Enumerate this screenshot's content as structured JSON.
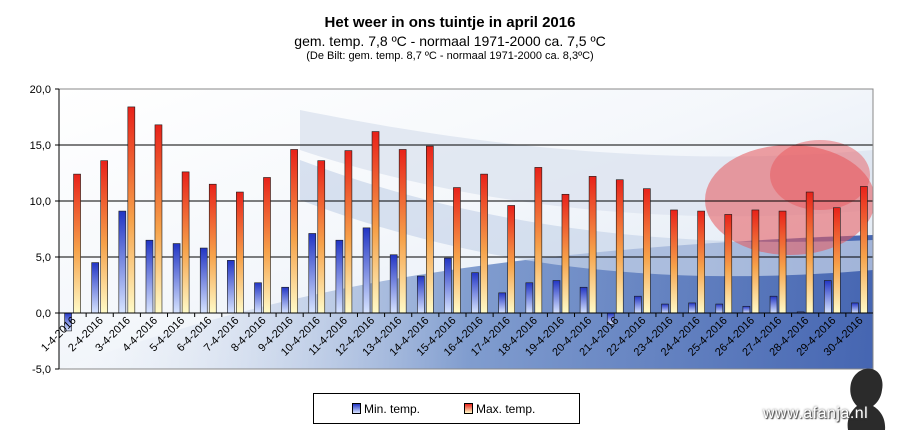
{
  "chart_data": {
    "type": "bar",
    "title": "Het weer in ons tuintje in april 2016",
    "subtitle": "gem.  temp. 7,8 ºC - normaal  1971-2000  ca. 7,5 ºC",
    "subtitle2": "(De Bilt: gem. temp. 8,7 ºC - normaal 1971-2000 ca. 8,3ºC)",
    "xlabel": "",
    "ylabel": "",
    "ylim": [
      -5,
      20
    ],
    "yticks": [
      "-5,0",
      "0,0",
      "5,0",
      "10,0",
      "15,0",
      "20,0"
    ],
    "grid": true,
    "legend_position": "bottom",
    "categories": [
      "1-4-2016",
      "2-4-2016",
      "3-4-2016",
      "4-4-2016",
      "5-4-2016",
      "6-4-2016",
      "7-4-2016",
      "8-4-2016",
      "9-4-2016",
      "10-4-2016",
      "11-4-2016",
      "12-4-2016",
      "13-4-2016",
      "14-4-2016",
      "15-4-2016",
      "16-4-2016",
      "17-4-2016",
      "18-4-2016",
      "19-4-2016",
      "20-4-2016",
      "21-4-2016",
      "22-4-2016",
      "23-4-2016",
      "24-4-2016",
      "25-4-2016",
      "26-4-2016",
      "27-4-2016",
      "28-4-2016",
      "29-4-2016",
      "30-4-2016"
    ],
    "series": [
      {
        "name": "Min. temp.",
        "color": "#2f3fc8",
        "values": [
          -1.6,
          4.5,
          9.1,
          6.5,
          6.2,
          5.8,
          4.7,
          2.7,
          2.3,
          7.1,
          6.5,
          7.6,
          5.2,
          3.3,
          4.9,
          3.6,
          1.8,
          2.7,
          2.9,
          2.3,
          -1.0,
          1.5,
          0.8,
          0.9,
          0.8,
          0.6,
          1.5,
          0.1,
          2.9,
          0.9
        ]
      },
      {
        "name": "Max. temp.",
        "color": "#e8341c",
        "values": [
          12.4,
          13.6,
          18.4,
          16.8,
          12.6,
          11.5,
          10.8,
          12.1,
          14.6,
          13.6,
          14.5,
          16.2,
          14.6,
          14.9,
          11.2,
          12.4,
          9.6,
          13.0,
          10.6,
          12.2,
          11.9,
          11.1,
          9.2,
          9.1,
          8.8,
          9.2,
          9.1,
          10.8,
          9.4,
          11.3
        ]
      }
    ]
  },
  "watermark": "www.afanja.nl",
  "colors": {
    "plot_background": "#ffffff",
    "gridline": "#000000"
  }
}
